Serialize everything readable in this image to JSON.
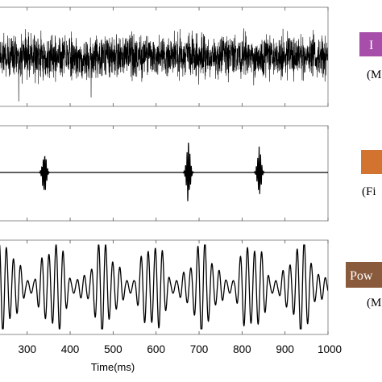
{
  "chart_data": {
    "type": "line",
    "xlabel": "Time(ms)",
    "x_ticks": [
      300,
      400,
      500,
      600,
      700,
      800,
      900,
      1000
    ],
    "xlim": [
      233,
      1000
    ],
    "panels": [
      {
        "id": "noise",
        "signal": "broadband-noise",
        "amplitude": 1.0,
        "side_label": "I",
        "side_sub": "(M",
        "side_color": "#a64ea9"
      },
      {
        "id": "bursts",
        "signal": "transient-bursts",
        "burst_centers_ms": [
          340,
          675,
          840
        ],
        "side_label": "",
        "side_sub": "(Fi",
        "side_color": "#d2742f"
      },
      {
        "id": "oscillation",
        "signal": "amplitude-modulated-oscillation",
        "side_label": "Pow",
        "side_sub": "(M",
        "side_color": "#8a5a3c"
      }
    ]
  }
}
